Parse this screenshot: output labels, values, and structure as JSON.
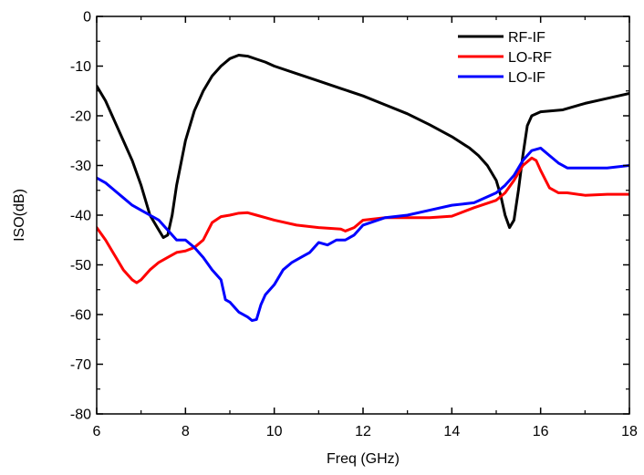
{
  "chart_data": {
    "type": "line",
    "title": "",
    "xlabel": "Freq (GHz)",
    "ylabel": "ISO(dB)",
    "xlim": [
      6,
      18
    ],
    "ylim": [
      -80,
      0
    ],
    "xticks": [
      6,
      8,
      10,
      12,
      14,
      16,
      18
    ],
    "yticks": [
      0,
      -10,
      -20,
      -30,
      -40,
      -50,
      -60,
      -70,
      -80
    ],
    "x_tick_labels": [
      "6",
      "8",
      "10",
      "12",
      "14",
      "16",
      "18"
    ],
    "y_tick_labels": [
      "0",
      "-10",
      "-20",
      "-30",
      "-40",
      "-50",
      "-60",
      "-70",
      "-80"
    ],
    "grid": false,
    "legend_position": "top-right",
    "series": [
      {
        "name": "RF-IF",
        "color": "#000000",
        "x": [
          6.0,
          6.2,
          6.4,
          6.6,
          6.8,
          7.0,
          7.2,
          7.4,
          7.5,
          7.6,
          7.7,
          7.8,
          8.0,
          8.2,
          8.4,
          8.6,
          8.8,
          9.0,
          9.2,
          9.4,
          9.6,
          9.8,
          10.0,
          10.5,
          11.0,
          11.5,
          12.0,
          12.5,
          13.0,
          13.5,
          14.0,
          14.4,
          14.6,
          14.8,
          15.0,
          15.1,
          15.2,
          15.3,
          15.4,
          15.5,
          15.6,
          15.7,
          15.8,
          16.0,
          16.5,
          17.0,
          17.5,
          18.0
        ],
        "y": [
          -14,
          -17,
          -21,
          -25,
          -29,
          -34,
          -40,
          -43,
          -44.5,
          -44,
          -40,
          -34,
          -25,
          -19,
          -15,
          -12,
          -10,
          -8.5,
          -7.8,
          -8,
          -8.6,
          -9.2,
          -10,
          -11.5,
          -13,
          -14.5,
          -16,
          -17.8,
          -19.6,
          -21.8,
          -24.2,
          -26.5,
          -28,
          -30,
          -33,
          -36,
          -40,
          -42.5,
          -41,
          -35,
          -28,
          -22,
          -20,
          -19.2,
          -18.8,
          -17.5,
          -16.5,
          -15.5
        ]
      },
      {
        "name": "LO-RF",
        "color": "#ff0000",
        "x": [
          6.0,
          6.2,
          6.4,
          6.6,
          6.8,
          6.9,
          7.0,
          7.2,
          7.4,
          7.6,
          7.8,
          8.0,
          8.2,
          8.4,
          8.6,
          8.8,
          9.0,
          9.2,
          9.4,
          9.6,
          9.8,
          10.0,
          10.5,
          11.0,
          11.5,
          11.6,
          11.8,
          12.0,
          12.5,
          13.0,
          13.5,
          14.0,
          14.5,
          15.0,
          15.2,
          15.4,
          15.6,
          15.8,
          15.9,
          16.0,
          16.2,
          16.4,
          16.6,
          17.0,
          17.5,
          18.0
        ],
        "y": [
          -42.5,
          -45,
          -48,
          -51,
          -53,
          -53.6,
          -53,
          -51,
          -49.5,
          -48.5,
          -47.5,
          -47.2,
          -46.5,
          -45,
          -41.5,
          -40.3,
          -40,
          -39.6,
          -39.5,
          -40,
          -40.5,
          -41,
          -42,
          -42.5,
          -42.8,
          -43.2,
          -42.5,
          -41,
          -40.5,
          -40.5,
          -40.5,
          -40.2,
          -38.5,
          -37,
          -35.5,
          -33,
          -30,
          -28.5,
          -29,
          -31,
          -34.5,
          -35.5,
          -35.5,
          -36,
          -35.8,
          -35.8
        ]
      },
      {
        "name": "LO-IF",
        "color": "#0000ff",
        "x": [
          6.0,
          6.2,
          6.4,
          6.6,
          6.8,
          7.0,
          7.2,
          7.4,
          7.6,
          7.8,
          8.0,
          8.2,
          8.4,
          8.6,
          8.8,
          8.9,
          9.0,
          9.2,
          9.4,
          9.5,
          9.6,
          9.7,
          9.8,
          10.0,
          10.2,
          10.4,
          10.6,
          10.8,
          11.0,
          11.2,
          11.4,
          11.6,
          11.8,
          12.0,
          12.5,
          13.0,
          13.5,
          14.0,
          14.5,
          15.0,
          15.2,
          15.4,
          15.6,
          15.8,
          16.0,
          16.2,
          16.4,
          16.6,
          17.0,
          17.5,
          18.0
        ],
        "y": [
          -32.5,
          -33.5,
          -35,
          -36.5,
          -38,
          -39,
          -40,
          -41,
          -43,
          -45,
          -45,
          -46.5,
          -48.5,
          -51,
          -53,
          -57,
          -57.5,
          -59.5,
          -60.5,
          -61.2,
          -61,
          -58,
          -56,
          -54,
          -51,
          -49.5,
          -48.5,
          -47.5,
          -45.5,
          -46,
          -45,
          -45,
          -44,
          -42,
          -40.5,
          -40,
          -39,
          -38,
          -37.5,
          -35.5,
          -34,
          -32,
          -29,
          -27,
          -26.5,
          -28,
          -29.5,
          -30.5,
          -30.5,
          -30.5,
          -30
        ]
      }
    ]
  }
}
